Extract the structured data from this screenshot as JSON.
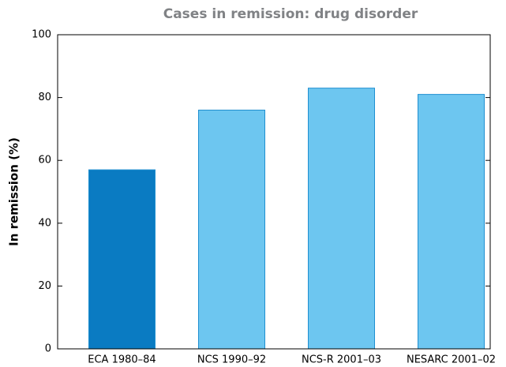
{
  "chart_data": {
    "type": "bar",
    "title": "Cases in remission: drug disorder",
    "y_label": "In remission (%)",
    "categories": [
      "ECA 1980–84",
      "NCS 1990–92",
      "NCS-R 2001–03",
      "NESARC 2001–02"
    ],
    "values": [
      57,
      76,
      83,
      81
    ],
    "colors": [
      "#0a7bc2",
      "#6dc6f0",
      "#6dc6f0",
      "#6dc6f0"
    ],
    "ylim": [
      0,
      100
    ],
    "yticks": [
      0,
      20,
      40,
      60,
      80,
      100
    ]
  }
}
